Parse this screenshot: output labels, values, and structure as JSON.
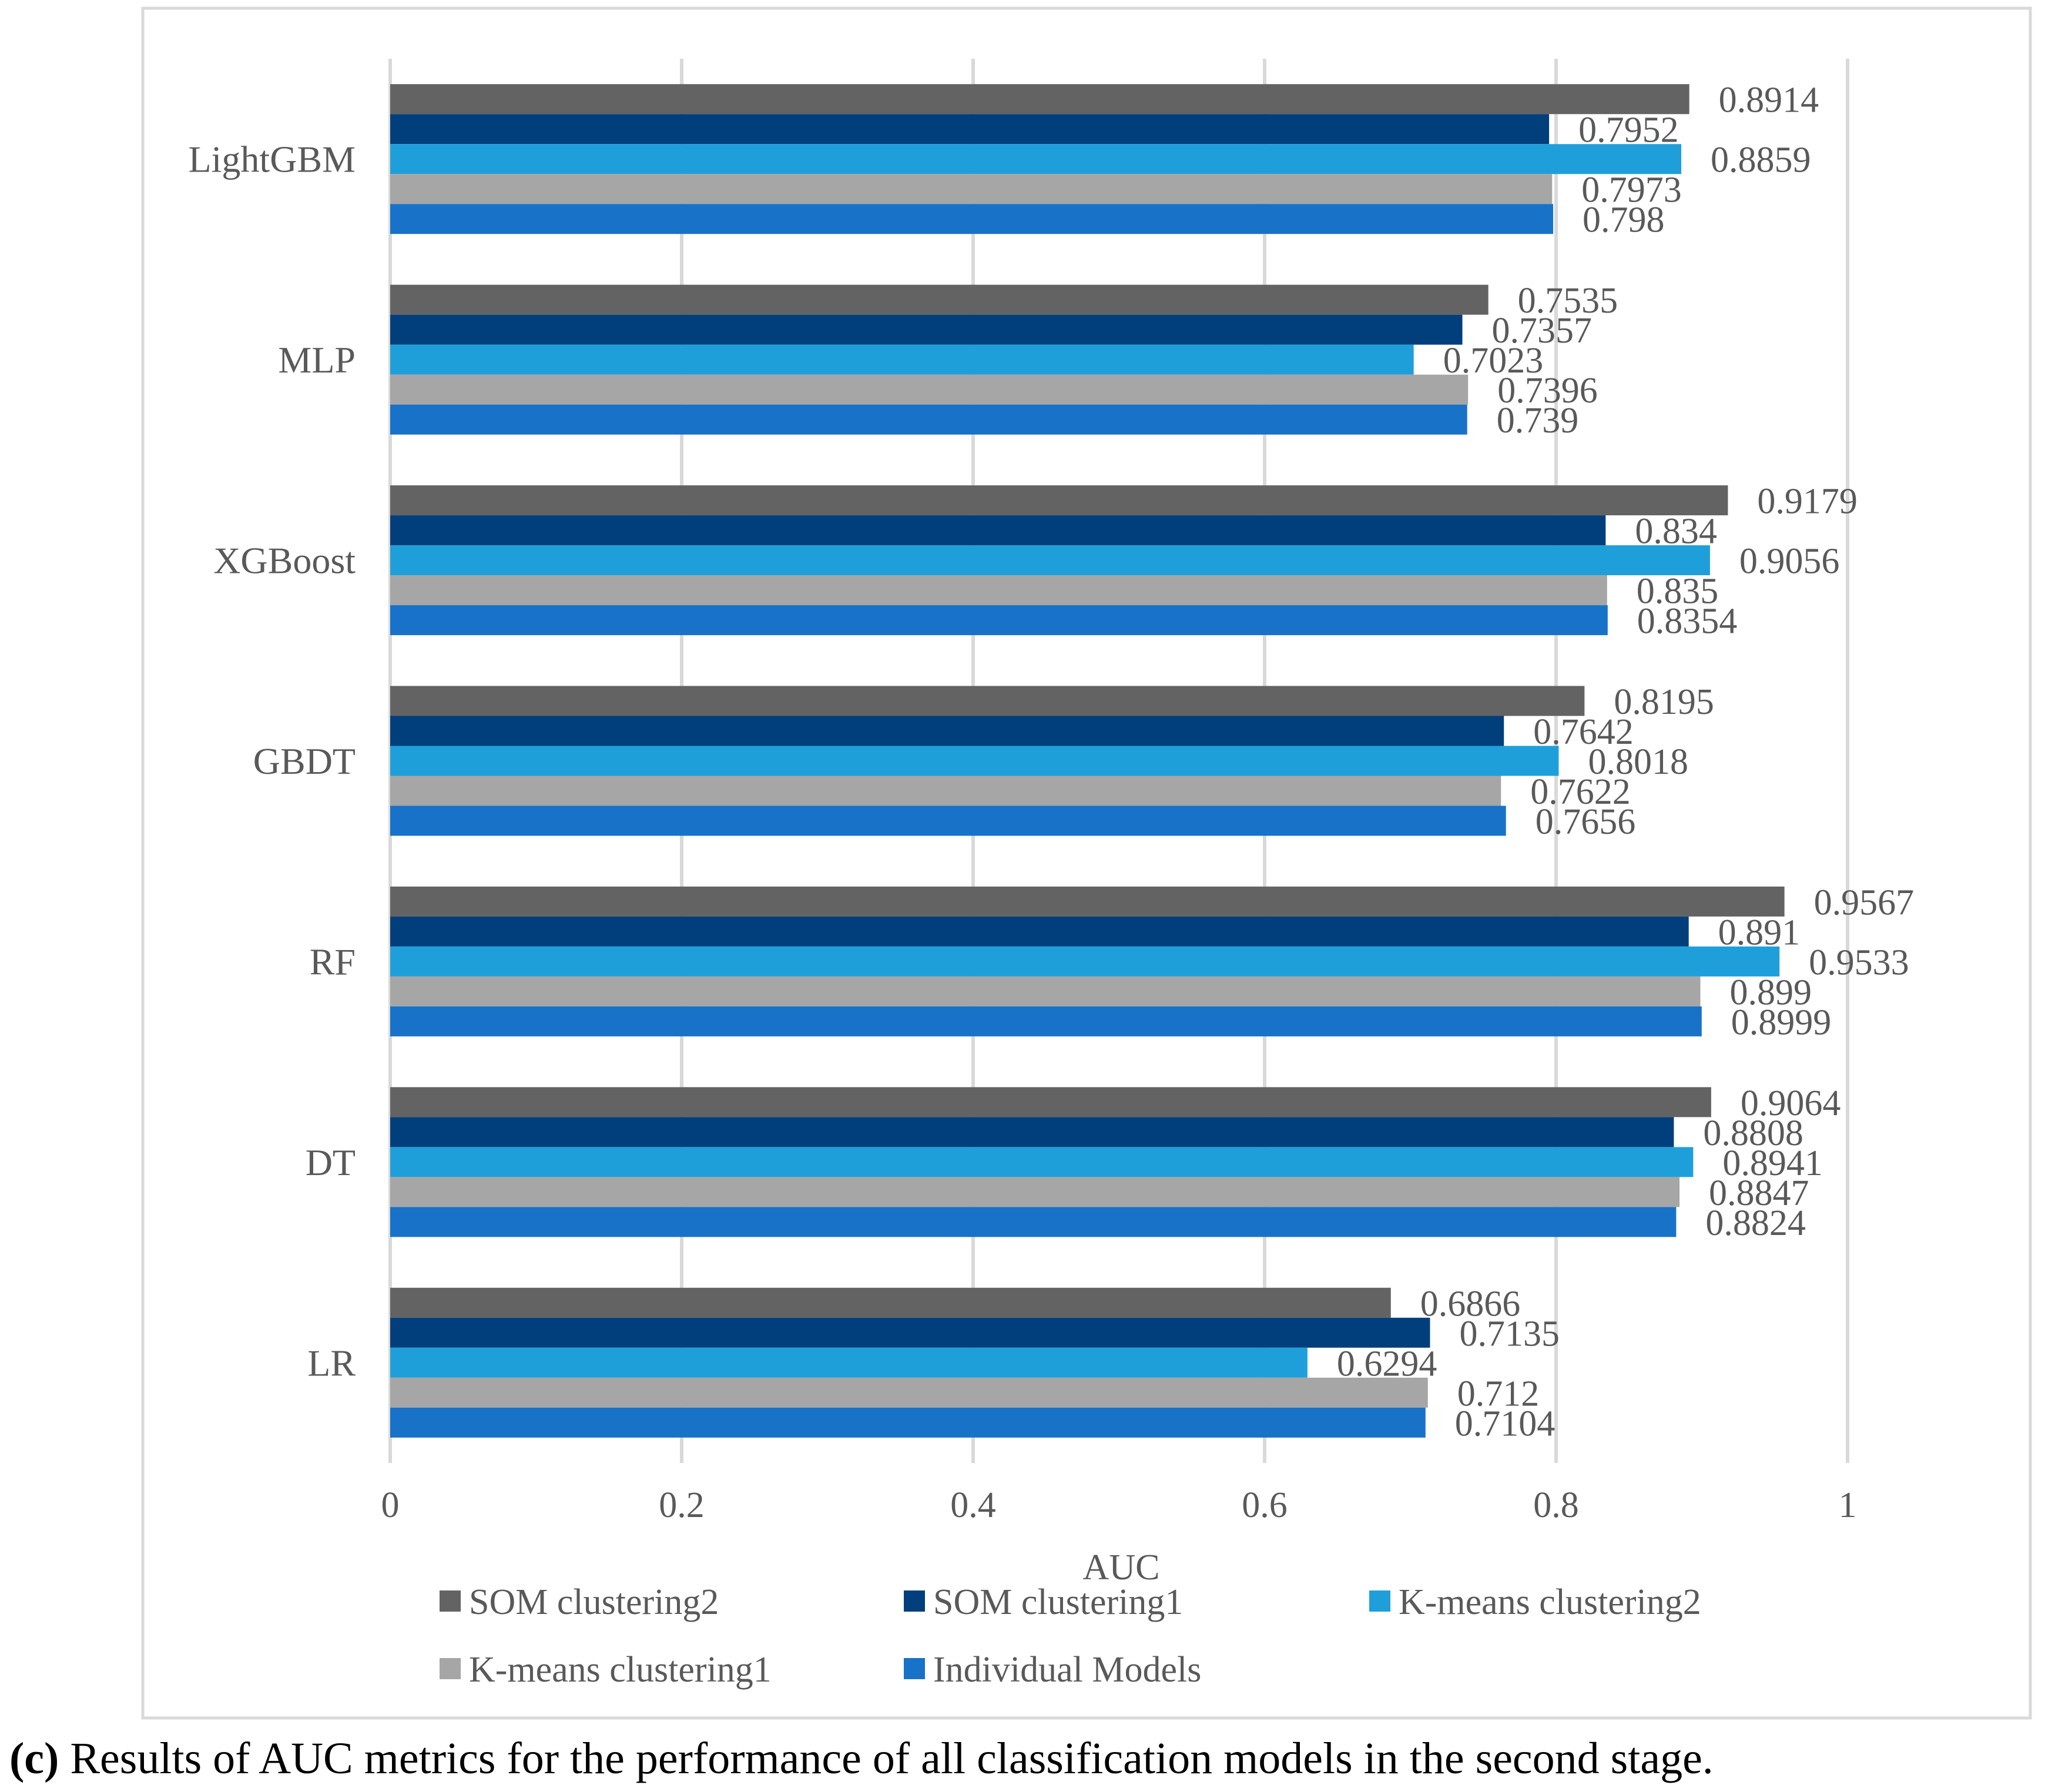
{
  "chart_data": {
    "type": "bar",
    "orientation": "horizontal",
    "categories": [
      "LR",
      "DT",
      "RF",
      "GBDT",
      "XGBoost",
      "MLP",
      "LightGBM"
    ],
    "series": [
      {
        "name": "SOM clustering2",
        "color": "#636363",
        "values": [
          0.6866,
          0.9064,
          0.9567,
          0.8195,
          0.9179,
          0.7535,
          0.8914
        ]
      },
      {
        "name": "SOM clustering1",
        "color": "#003f7b",
        "values": [
          0.7135,
          0.8808,
          0.891,
          0.7642,
          0.834,
          0.7357,
          0.7952
        ]
      },
      {
        "name": "K-means clustering2",
        "color": "#1f9fda",
        "values": [
          0.6294,
          0.8941,
          0.9533,
          0.8018,
          0.9056,
          0.7023,
          0.8859
        ]
      },
      {
        "name": "K-means clustering1",
        "color": "#a6a6a6",
        "values": [
          0.712,
          0.8847,
          0.899,
          0.7622,
          0.835,
          0.7396,
          0.7973
        ]
      },
      {
        "name": "Individual Models",
        "color": "#1872c8",
        "values": [
          0.7104,
          0.8824,
          0.8999,
          0.7656,
          0.8354,
          0.739,
          0.798
        ]
      }
    ],
    "value_labels": [
      [
        "0.6866",
        "0.9064",
        "0.9567",
        "0.8195",
        "0.9179",
        "0.7535",
        "0.8914"
      ],
      [
        "0.7135",
        "0.8808",
        "0.891",
        "0.7642",
        "0.834",
        "0.7357",
        "0.7952"
      ],
      [
        "0.6294",
        "0.8941",
        "0.9533",
        "0.8018",
        "0.9056",
        "0.7023",
        "0.8859"
      ],
      [
        "0.712",
        "0.8847",
        "0.899",
        "0.7622",
        "0.835",
        "0.7396",
        "0.7973"
      ],
      [
        "0.7104",
        "0.8824",
        "0.8999",
        "0.7656",
        "0.8354",
        "0.739",
        "0.798"
      ]
    ],
    "xlabel": "AUC",
    "ylabel": "",
    "xlim": [
      0,
      1
    ],
    "xticks": [
      0,
      0.2,
      0.4,
      0.6,
      0.8,
      1
    ],
    "xtick_labels": [
      "0",
      "0.2",
      "0.4",
      "0.6",
      "0.8",
      "1"
    ],
    "grid": true,
    "legend_position": "bottom",
    "legend": [
      {
        "name": "SOM clustering2",
        "color": "#636363"
      },
      {
        "name": "SOM clustering1",
        "color": "#003f7b"
      },
      {
        "name": "K-means clustering2",
        "color": "#1f9fda"
      },
      {
        "name": "K-means clustering1",
        "color": "#a6a6a6"
      },
      {
        "name": "Individual Models",
        "color": "#1872c8"
      }
    ]
  },
  "caption": {
    "bold": "(c)",
    "text": " Results of AUC metrics for the performance of all classification models in the second stage."
  }
}
